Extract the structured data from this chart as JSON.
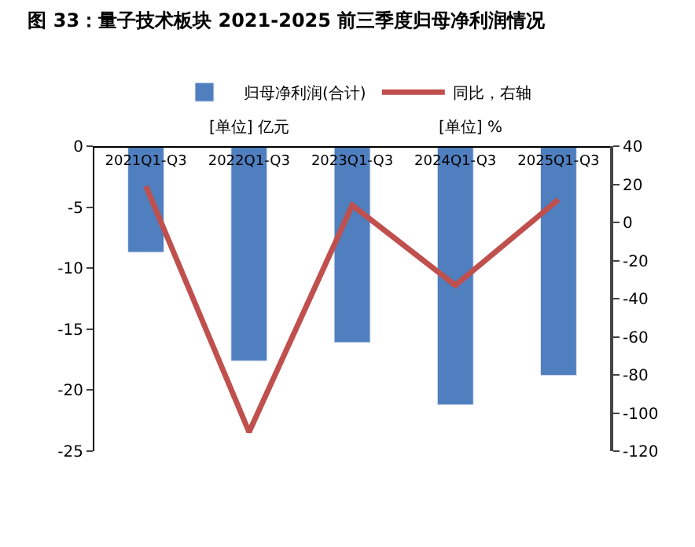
{
  "chart_data": {
    "type": "bar",
    "title": "图 33：量子技术板块 2021-2025 前三季度归母净利润情况",
    "categories": [
      "2021Q1-Q3",
      "2022Q1-Q3",
      "2023Q1-Q3",
      "2024Q1-Q3",
      "2025Q1-Q3"
    ],
    "series": [
      {
        "name": "归母净利润(合计)",
        "color": "#4f7fbf",
        "values": [
          -8.7,
          -17.6,
          -16.1,
          -21.2,
          -18.8
        ]
      },
      {
        "name": "同比，右轴",
        "type": "line",
        "axis": "y2",
        "color": "#c0504d",
        "values": [
          19,
          -110,
          9,
          -33,
          12
        ]
      }
    ],
    "ylabel": "[单位] 亿元",
    "y2label": "[单位] %",
    "ylim": [
      -25,
      0
    ],
    "yticks": [
      -25,
      -20,
      -15,
      -10,
      -5,
      0
    ],
    "y2lim": [
      -120,
      40
    ],
    "y2ticks": [
      -120,
      -100,
      -80,
      -60,
      -40,
      -20,
      0,
      20,
      40
    ],
    "legend": "top"
  }
}
